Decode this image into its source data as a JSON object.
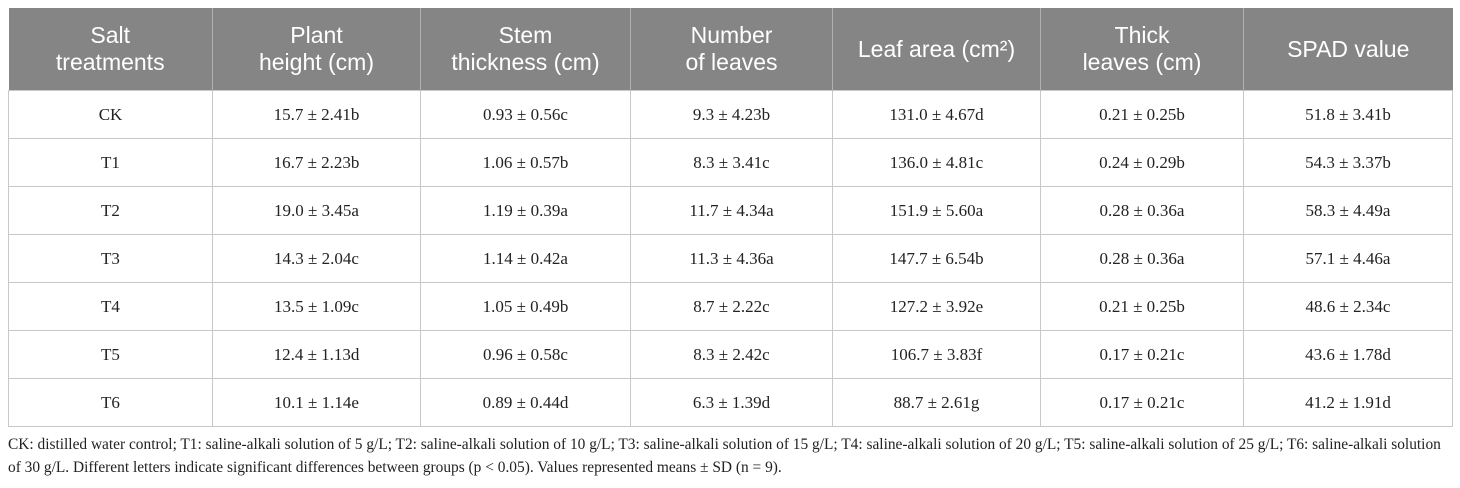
{
  "table": {
    "header": [
      [
        "Salt",
        "treatments"
      ],
      [
        "Plant",
        "height (cm)"
      ],
      [
        "Stem",
        "thickness (cm)"
      ],
      [
        "Number",
        "of leaves"
      ],
      [
        "Leaf area (cm²)"
      ],
      [
        "Thick",
        "leaves (cm)"
      ],
      [
        "SPAD value"
      ]
    ],
    "rows": [
      [
        "CK",
        "15.7 ± 2.41b",
        "0.93 ± 0.56c",
        "9.3 ± 4.23b",
        "131.0 ± 4.67d",
        "0.21 ± 0.25b",
        "51.8 ± 3.41b"
      ],
      [
        "T1",
        "16.7 ± 2.23b",
        "1.06 ± 0.57b",
        "8.3 ± 3.41c",
        "136.0 ± 4.81c",
        "0.24 ± 0.29b",
        "54.3 ± 3.37b"
      ],
      [
        "T2",
        "19.0 ± 3.45a",
        "1.19 ± 0.39a",
        "11.7 ± 4.34a",
        "151.9 ± 5.60a",
        "0.28 ± 0.36a",
        "58.3 ± 4.49a"
      ],
      [
        "T3",
        "14.3 ± 2.04c",
        "1.14 ± 0.42a",
        "11.3 ± 4.36a",
        "147.7 ± 6.54b",
        "0.28 ± 0.36a",
        "57.1 ± 4.46a"
      ],
      [
        "T4",
        "13.5 ± 1.09c",
        "1.05 ± 0.49b",
        "8.7 ± 2.22c",
        "127.2 ± 3.92e",
        "0.21 ± 0.25b",
        "48.6 ± 2.34c"
      ],
      [
        "T5",
        "12.4 ± 1.13d",
        "0.96 ± 0.58c",
        "8.3 ± 2.42c",
        "106.7 ± 3.83f",
        "0.17 ± 0.21c",
        "43.6 ± 1.78d"
      ],
      [
        "T6",
        "10.1 ± 1.14e",
        "0.89 ± 0.44d",
        "6.3 ± 1.39d",
        "88.7 ± 2.61g",
        "0.17 ± 0.21c",
        "41.2 ± 1.91d"
      ]
    ],
    "note": "CK: distilled water control; T1: saline-alkali solution of 5 g/L; T2: saline-alkali solution of 10 g/L; T3: saline-alkali solution of 15 g/L; T4: saline-alkali solution of 20 g/L; T5: saline-alkali solution of 25 g/L; T6: saline-alkali solution of 30 g/L. Different letters indicate significant differences between groups (p < 0.05). Values represented means ± SD (n = 9)."
  }
}
